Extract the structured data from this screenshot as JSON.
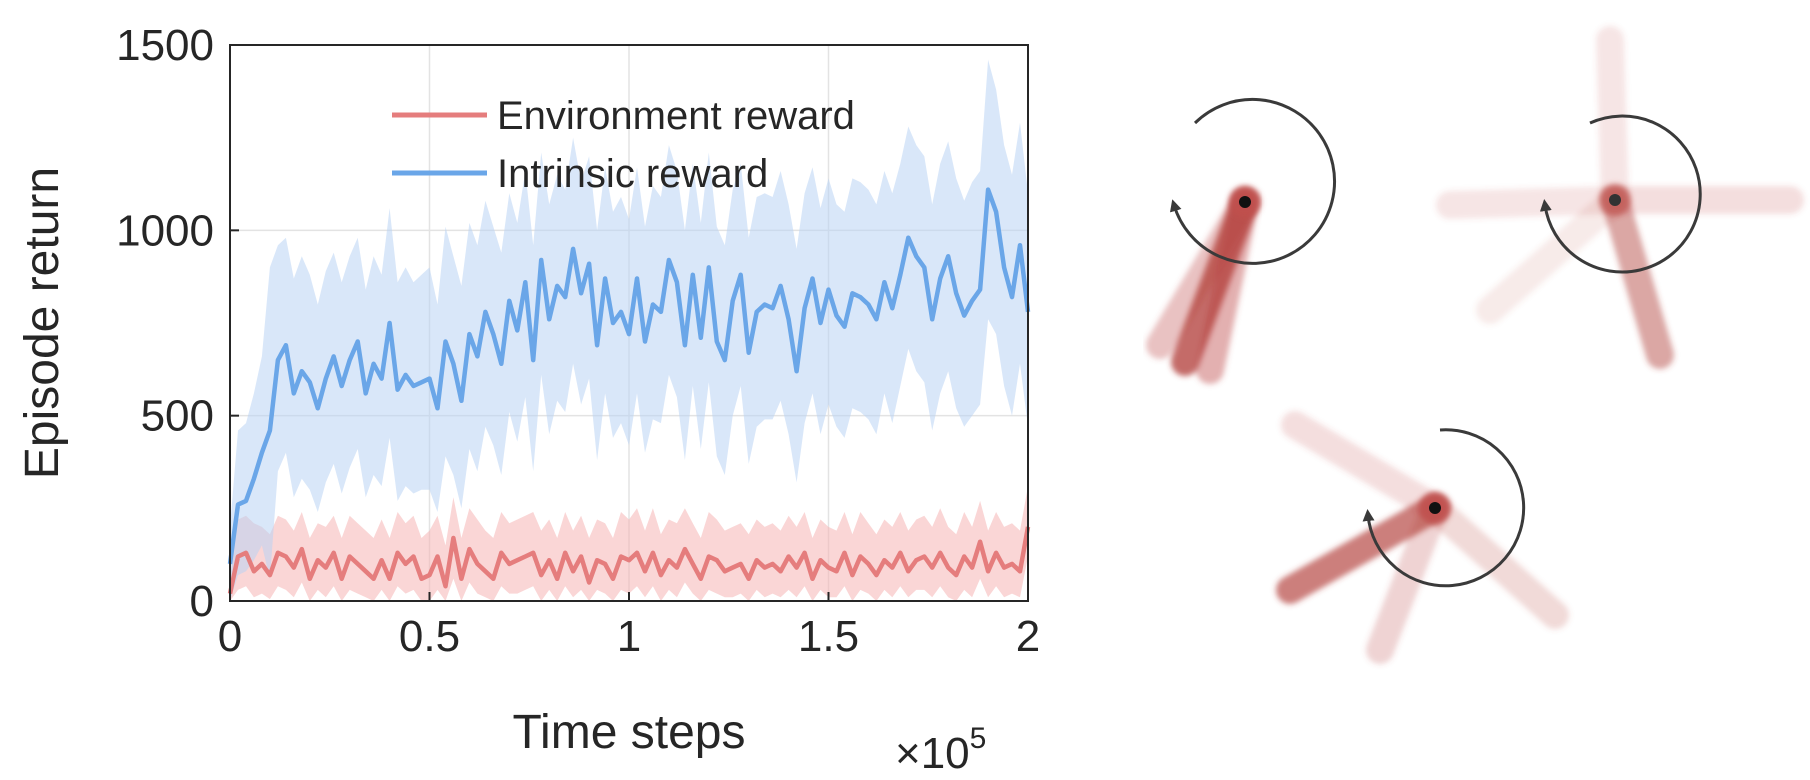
{
  "chart_data": {
    "type": "line",
    "xlabel": "Time steps",
    "ylabel": "Episode return",
    "x_multiplier": "×10",
    "x_multiplier_exp": "5",
    "xlim": [
      0,
      2
    ],
    "ylim": [
      0,
      1500
    ],
    "xticks": [
      "0",
      "0.5",
      "1",
      "1.5",
      "2"
    ],
    "yticks": [
      "0",
      "500",
      "1000",
      "1500"
    ],
    "grid": true,
    "legend_placement": "top-right",
    "series": [
      {
        "name": "Environment reward",
        "color": "#e57d7d",
        "band_color": "#f5b5b5",
        "x": [
          0.0,
          0.02,
          0.04,
          0.06,
          0.08,
          0.1,
          0.12,
          0.14,
          0.16,
          0.18,
          0.2,
          0.22,
          0.24,
          0.26,
          0.28,
          0.3,
          0.32,
          0.34,
          0.36,
          0.38,
          0.4,
          0.42,
          0.44,
          0.46,
          0.48,
          0.5,
          0.52,
          0.54,
          0.56,
          0.58,
          0.6,
          0.62,
          0.64,
          0.66,
          0.68,
          0.7,
          0.72,
          0.74,
          0.76,
          0.78,
          0.8,
          0.82,
          0.84,
          0.86,
          0.88,
          0.9,
          0.92,
          0.94,
          0.96,
          0.98,
          1.0,
          1.02,
          1.04,
          1.06,
          1.08,
          1.1,
          1.12,
          1.14,
          1.16,
          1.18,
          1.2,
          1.22,
          1.24,
          1.26,
          1.28,
          1.3,
          1.32,
          1.34,
          1.36,
          1.38,
          1.4,
          1.42,
          1.44,
          1.46,
          1.48,
          1.5,
          1.52,
          1.54,
          1.56,
          1.58,
          1.6,
          1.62,
          1.64,
          1.66,
          1.68,
          1.7,
          1.72,
          1.74,
          1.76,
          1.78,
          1.8,
          1.82,
          1.84,
          1.86,
          1.88,
          1.9,
          1.92,
          1.94,
          1.96,
          1.98,
          2.0
        ],
        "y": [
          20,
          120,
          130,
          80,
          100,
          70,
          130,
          120,
          90,
          140,
          60,
          110,
          90,
          130,
          60,
          120,
          100,
          80,
          60,
          110,
          60,
          130,
          100,
          120,
          60,
          70,
          120,
          40,
          170,
          60,
          140,
          100,
          80,
          60,
          130,
          100,
          110,
          120,
          130,
          70,
          110,
          60,
          130,
          80,
          120,
          50,
          110,
          100,
          60,
          120,
          110,
          130,
          80,
          130,
          70,
          110,
          90,
          140,
          100,
          60,
          120,
          110,
          80,
          90,
          100,
          60,
          110,
          90,
          100,
          80,
          120,
          90,
          130,
          60,
          110,
          90,
          80,
          130,
          70,
          120,
          100,
          70,
          110,
          90,
          130,
          80,
          110,
          120,
          90,
          130,
          90,
          70,
          120,
          90,
          160,
          80,
          130,
          90,
          100,
          80,
          200
        ],
        "upper": [
          60,
          220,
          230,
          210,
          200,
          180,
          230,
          220,
          190,
          240,
          170,
          210,
          200,
          230,
          170,
          230,
          210,
          190,
          170,
          220,
          170,
          240,
          210,
          230,
          170,
          190,
          230,
          150,
          280,
          170,
          250,
          220,
          190,
          170,
          240,
          210,
          220,
          230,
          240,
          190,
          220,
          170,
          240,
          190,
          230,
          170,
          220,
          210,
          170,
          240,
          220,
          250,
          190,
          250,
          180,
          220,
          210,
          250,
          210,
          170,
          240,
          220,
          190,
          200,
          210,
          180,
          220,
          200,
          210,
          190,
          230,
          200,
          240,
          170,
          220,
          200,
          190,
          240,
          180,
          240,
          210,
          180,
          220,
          200,
          240,
          190,
          220,
          230,
          200,
          250,
          200,
          180,
          240,
          200,
          270,
          190,
          240,
          200,
          210,
          190,
          310
        ],
        "lower": [
          0,
          30,
          40,
          10,
          20,
          5,
          40,
          30,
          10,
          50,
          0,
          30,
          10,
          40,
          0,
          30,
          20,
          10,
          0,
          30,
          0,
          40,
          20,
          30,
          0,
          0,
          30,
          0,
          60,
          0,
          50,
          20,
          10,
          0,
          40,
          20,
          20,
          30,
          40,
          0,
          30,
          0,
          40,
          10,
          30,
          0,
          30,
          20,
          0,
          30,
          20,
          40,
          10,
          40,
          0,
          30,
          10,
          50,
          20,
          0,
          30,
          20,
          10,
          10,
          20,
          0,
          30,
          10,
          20,
          10,
          30,
          10,
          40,
          0,
          30,
          10,
          10,
          40,
          0,
          30,
          20,
          0,
          30,
          10,
          40,
          10,
          30,
          30,
          10,
          40,
          10,
          0,
          30,
          10,
          60,
          10,
          40,
          10,
          20,
          10,
          120
        ]
      },
      {
        "name": "Intrinsic reward",
        "color": "#6aa6e8",
        "band_color": "#b9d4f4",
        "x": [
          0.0,
          0.02,
          0.04,
          0.06,
          0.08,
          0.1,
          0.12,
          0.14,
          0.16,
          0.18,
          0.2,
          0.22,
          0.24,
          0.26,
          0.28,
          0.3,
          0.32,
          0.34,
          0.36,
          0.38,
          0.4,
          0.42,
          0.44,
          0.46,
          0.48,
          0.5,
          0.52,
          0.54,
          0.56,
          0.58,
          0.6,
          0.62,
          0.64,
          0.66,
          0.68,
          0.7,
          0.72,
          0.74,
          0.76,
          0.78,
          0.8,
          0.82,
          0.84,
          0.86,
          0.88,
          0.9,
          0.92,
          0.94,
          0.96,
          0.98,
          1.0,
          1.02,
          1.04,
          1.06,
          1.08,
          1.1,
          1.12,
          1.14,
          1.16,
          1.18,
          1.2,
          1.22,
          1.24,
          1.26,
          1.28,
          1.3,
          1.32,
          1.34,
          1.36,
          1.38,
          1.4,
          1.42,
          1.44,
          1.46,
          1.48,
          1.5,
          1.52,
          1.54,
          1.56,
          1.58,
          1.6,
          1.62,
          1.64,
          1.66,
          1.68,
          1.7,
          1.72,
          1.74,
          1.76,
          1.78,
          1.8,
          1.82,
          1.84,
          1.86,
          1.88,
          1.9,
          1.92,
          1.94,
          1.96,
          1.98,
          2.0
        ],
        "y": [
          100,
          260,
          270,
          330,
          400,
          460,
          650,
          690,
          560,
          620,
          590,
          520,
          600,
          660,
          580,
          650,
          700,
          560,
          640,
          600,
          750,
          570,
          610,
          580,
          590,
          600,
          520,
          700,
          640,
          540,
          720,
          660,
          780,
          720,
          640,
          810,
          730,
          860,
          650,
          920,
          760,
          850,
          820,
          950,
          830,
          910,
          690,
          870,
          750,
          780,
          720,
          870,
          700,
          800,
          780,
          920,
          860,
          690,
          880,
          710,
          900,
          700,
          650,
          810,
          880,
          670,
          780,
          800,
          790,
          850,
          760,
          620,
          790,
          870,
          750,
          840,
          770,
          740,
          830,
          820,
          800,
          760,
          860,
          790,
          880,
          980,
          930,
          900,
          760,
          870,
          930,
          830,
          770,
          810,
          840,
          1110,
          1050,
          900,
          820,
          960,
          780
        ],
        "upper": [
          200,
          460,
          480,
          560,
          660,
          900,
          960,
          980,
          870,
          930,
          880,
          800,
          890,
          940,
          860,
          930,
          980,
          840,
          930,
          880,
          1060,
          860,
          900,
          860,
          880,
          900,
          800,
          1010,
          930,
          850,
          1020,
          960,
          1080,
          1010,
          940,
          1100,
          1020,
          1160,
          960,
          1210,
          1070,
          1150,
          1110,
          1250,
          1130,
          1200,
          1000,
          1170,
          1050,
          1090,
          1030,
          1170,
          1010,
          1120,
          1090,
          1230,
          1160,
          1000,
          1180,
          1020,
          1210,
          1010,
          960,
          1110,
          1180,
          980,
          1090,
          1100,
          1090,
          1160,
          1070,
          950,
          1100,
          1170,
          1060,
          1140,
          1070,
          1050,
          1140,
          1130,
          1110,
          1070,
          1160,
          1100,
          1180,
          1280,
          1230,
          1200,
          1070,
          1180,
          1240,
          1140,
          1080,
          1130,
          1160,
          1460,
          1380,
          1230,
          1150,
          1290,
          1100
        ],
        "lower": [
          0,
          70,
          80,
          110,
          150,
          60,
          350,
          400,
          280,
          330,
          300,
          240,
          320,
          370,
          290,
          360,
          410,
          280,
          340,
          310,
          440,
          270,
          310,
          290,
          300,
          300,
          240,
          390,
          340,
          250,
          410,
          350,
          470,
          420,
          340,
          510,
          430,
          550,
          350,
          610,
          450,
          540,
          510,
          640,
          530,
          600,
          380,
          560,
          440,
          480,
          420,
          560,
          400,
          490,
          480,
          610,
          550,
          380,
          580,
          410,
          590,
          390,
          340,
          500,
          580,
          370,
          470,
          490,
          490,
          540,
          450,
          320,
          480,
          560,
          450,
          530,
          470,
          440,
          520,
          510,
          490,
          450,
          560,
          480,
          580,
          680,
          620,
          590,
          460,
          560,
          620,
          520,
          470,
          500,
          530,
          760,
          720,
          580,
          500,
          640,
          470
        ]
      }
    ]
  }
}
